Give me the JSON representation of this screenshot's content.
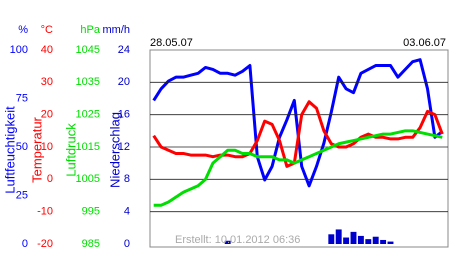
{
  "chart_data": {
    "type": "line",
    "date_labels": [
      "28.05.07",
      "03.06.07"
    ],
    "footer": "Erstellt: 10.01.2012 06:36",
    "grid": true,
    "series": [
      {
        "name": "Luftfeuchtigkeit",
        "unit": "%",
        "type": "line",
        "color": "#0000ff",
        "ylim": [
          0,
          100
        ],
        "yticks": [
          0,
          25,
          50,
          75,
          100
        ],
        "values": [
          74,
          80,
          84,
          86,
          86,
          87,
          88,
          91,
          90,
          88,
          88,
          87,
          89,
          92,
          45,
          33,
          40,
          55,
          64,
          74,
          40,
          30,
          40,
          52,
          68,
          86,
          80,
          78,
          88,
          90,
          92,
          92,
          92,
          86,
          90,
          94,
          95,
          80,
          55,
          58
        ]
      },
      {
        "name": "Temperatur",
        "unit": "°C",
        "type": "line",
        "color": "#ff0000",
        "ylim": [
          -20,
          40
        ],
        "yticks": [
          -20,
          -10,
          0,
          10,
          20,
          30,
          40
        ],
        "values": [
          13.5,
          10,
          9,
          8,
          8,
          7.5,
          7.5,
          7.5,
          7,
          7.5,
          7.5,
          7,
          7,
          8,
          12,
          18,
          17,
          12,
          4,
          5,
          20,
          24,
          22,
          15,
          11,
          10,
          10,
          11,
          13,
          14,
          13,
          13,
          12.5,
          12.5,
          13,
          13,
          16,
          21,
          20,
          14
        ]
      },
      {
        "name": "Luftdruck",
        "unit": "hPa",
        "type": "line",
        "color": "#00dd00",
        "ylim": [
          985,
          1045
        ],
        "yticks": [
          985,
          995,
          1005,
          1015,
          1025,
          1035,
          1045
        ],
        "values": [
          997,
          997,
          998,
          999.5,
          1001,
          1002,
          1003,
          1005,
          1010,
          1012,
          1014,
          1014,
          1013,
          1013,
          1012,
          1012,
          1012,
          1011,
          1011,
          1010,
          1011,
          1012,
          1013,
          1014,
          1015,
          1016,
          1016.5,
          1017,
          1017.5,
          1018,
          1018.5,
          1019,
          1019,
          1019.5,
          1020,
          1020,
          1019.5,
          1019,
          1018.5,
          1018
        ]
      },
      {
        "name": "Niederschlag",
        "unit": "mm/h",
        "type": "bar",
        "color": "#0000cc",
        "ylim": [
          0,
          24
        ],
        "yticks": [
          0,
          4,
          8,
          12,
          16,
          20,
          24
        ],
        "values": [
          0,
          0,
          0,
          0,
          0,
          0,
          0,
          0,
          0,
          0,
          0.4,
          0,
          0,
          0,
          0,
          0,
          0,
          0,
          0,
          0,
          0,
          0,
          0,
          0,
          1.2,
          1.8,
          0.8,
          1.5,
          1,
          0.6,
          0.9,
          0.5,
          0.3,
          0,
          0,
          0,
          0,
          0,
          0,
          0
        ]
      }
    ]
  }
}
